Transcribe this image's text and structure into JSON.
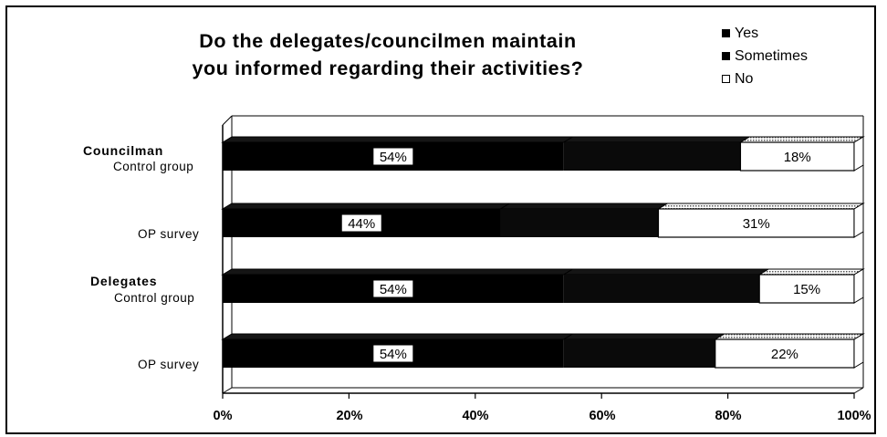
{
  "chart_data": {
    "type": "bar",
    "orientation": "horizontal",
    "stacked": true,
    "percent": true,
    "title": "Do the delegates/councilmen maintain you informed regarding their activities?",
    "title_lines": [
      "Do the delegates/councilmen maintain",
      "you informed regarding their activities?"
    ],
    "categories": [
      {
        "group": "Councilman",
        "label": "Control group"
      },
      {
        "group": "",
        "label": "OP survey"
      },
      {
        "group": "Delegates",
        "label": "Control group"
      },
      {
        "group": "",
        "label": "OP survey"
      }
    ],
    "series": [
      {
        "name": "Yes",
        "values": [
          54,
          44,
          54,
          54
        ],
        "labels": [
          "54%",
          "44%",
          "54%",
          "54%"
        ],
        "color": "#000000"
      },
      {
        "name": "Sometimes",
        "values": [
          28,
          25,
          31,
          24
        ],
        "labels": [
          "",
          "",
          "",
          ""
        ],
        "color": "#0a0a0a"
      },
      {
        "name": "No",
        "values": [
          18,
          31,
          15,
          22
        ],
        "labels": [
          "18%",
          "31%",
          "15%",
          "22%"
        ],
        "color": "#ffffff"
      }
    ],
    "xlim": [
      0,
      100
    ],
    "xticks": [
      "0%",
      "20%",
      "40%",
      "60%",
      "80%",
      "100%"
    ],
    "xlabel": "",
    "ylabel": "",
    "grid": false,
    "legend_position": "top-right"
  }
}
